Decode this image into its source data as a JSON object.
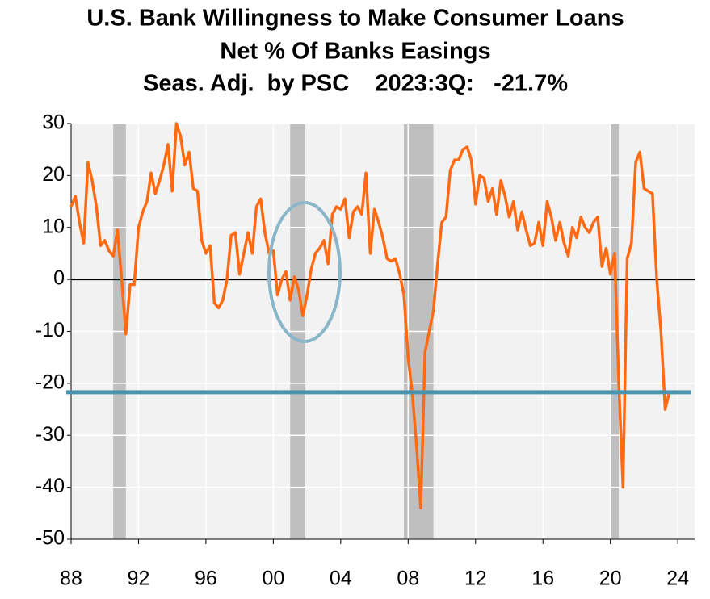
{
  "chart_data": {
    "type": "line",
    "title": "U.S. Bank Willingness to Make Consumer Loans",
    "subtitle": "Net % Of Banks Easings",
    "note": "Seas. Adj.  by PSC    2023:3Q:   -21.7%",
    "color": "#ff6a13",
    "x": [
      1988,
      1988.25,
      1988.5,
      1988.75,
      1989,
      1989.25,
      1989.5,
      1989.75,
      1990,
      1990.25,
      1990.5,
      1990.75,
      1991,
      1991.25,
      1991.5,
      1991.75,
      1992,
      1992.25,
      1992.5,
      1992.75,
      1993,
      1993.25,
      1993.5,
      1993.75,
      1994,
      1994.25,
      1994.5,
      1994.75,
      1995,
      1995.25,
      1995.5,
      1995.75,
      1996,
      1996.25,
      1996.5,
      1996.75,
      1997,
      1997.25,
      1997.5,
      1997.75,
      1998,
      1998.25,
      1998.5,
      1998.75,
      1999,
      1999.25,
      1999.5,
      1999.75,
      2000,
      2000.25,
      2000.5,
      2000.75,
      2001,
      2001.25,
      2001.5,
      2001.75,
      2002,
      2002.25,
      2002.5,
      2002.75,
      2003,
      2003.25,
      2003.5,
      2003.75,
      2004,
      2004.25,
      2004.5,
      2004.75,
      2005,
      2005.25,
      2005.5,
      2005.75,
      2006,
      2006.25,
      2006.5,
      2006.75,
      2007,
      2007.25,
      2007.5,
      2007.75,
      2008,
      2008.25,
      2008.5,
      2008.75,
      2009,
      2009.25,
      2009.5,
      2009.75,
      2010,
      2010.25,
      2010.5,
      2010.75,
      2011,
      2011.25,
      2011.5,
      2011.75,
      2012,
      2012.25,
      2012.5,
      2012.75,
      2013,
      2013.25,
      2013.5,
      2013.75,
      2014,
      2014.25,
      2014.5,
      2014.75,
      2015,
      2015.25,
      2015.5,
      2015.75,
      2016,
      2016.25,
      2016.5,
      2016.75,
      2017,
      2017.25,
      2017.5,
      2017.75,
      2018,
      2018.25,
      2018.5,
      2018.75,
      2019,
      2019.25,
      2019.5,
      2019.75,
      2020,
      2020.25,
      2020.5,
      2020.75,
      2021,
      2021.25,
      2021.5,
      2021.75,
      2022,
      2022.25,
      2022.5,
      2022.75,
      2023,
      2023.25,
      2023.5
    ],
    "values": [
      14,
      16,
      11,
      7,
      22.5,
      19,
      14,
      6.5,
      7.5,
      5.5,
      4.5,
      9.5,
      0,
      -10.5,
      -1,
      -1,
      10,
      13,
      15,
      20.5,
      16.5,
      19,
      22,
      26,
      17,
      30,
      27.5,
      22,
      24.5,
      17.5,
      17,
      7.5,
      5,
      6.5,
      -4.5,
      -5.5,
      -4,
      0,
      8.5,
      9,
      1,
      5,
      9,
      5,
      14,
      15.5,
      9,
      5,
      5.5,
      -3,
      0,
      1.5,
      -4,
      0.5,
      -2,
      -7,
      -3,
      2,
      5,
      6,
      7.5,
      3,
      12.5,
      14,
      13.5,
      15.5,
      8,
      13,
      14,
      12.5,
      20.5,
      5,
      13.5,
      11,
      8,
      4,
      3.5,
      4,
      1,
      -3,
      -15,
      -22,
      -32,
      -44,
      -14,
      -10,
      -6,
      3,
      11,
      12,
      21,
      23,
      23,
      25,
      25.5,
      23,
      14.5,
      20,
      19.5,
      15,
      17.5,
      12.5,
      19,
      16,
      12,
      15,
      9.5,
      13,
      9.5,
      6.5,
      7,
      11,
      6.5,
      15,
      12,
      7.5,
      11,
      7,
      4.5,
      10,
      8,
      12,
      10,
      9,
      11,
      12,
      2.5,
      6,
      1,
      5,
      -20,
      -40,
      4,
      7,
      22.5,
      24.5,
      17.5,
      17,
      16.5,
      0,
      -10,
      -25,
      -21.7
    ],
    "recessions": [
      [
        1990.5,
        1991.25
      ],
      [
        2001,
        2001.9
      ],
      [
        2007.75,
        2009.5
      ],
      [
        2020,
        2020.5
      ]
    ],
    "reference_line": -21.7,
    "xlim": [
      1988,
      2025
    ],
    "xticks": [
      {
        "value": 1988,
        "label": "88"
      },
      {
        "value": 1992,
        "label": "92"
      },
      {
        "value": 1996,
        "label": "96"
      },
      {
        "value": 2000,
        "label": "00"
      },
      {
        "value": 2004,
        "label": "04"
      },
      {
        "value": 2008,
        "label": "08"
      },
      {
        "value": 2012,
        "label": "12"
      },
      {
        "value": 2016,
        "label": "16"
      },
      {
        "value": 2020,
        "label": "20"
      },
      {
        "value": 2024,
        "label": "24"
      }
    ],
    "ylim": [
      -50,
      30
    ],
    "yticks": [
      -50,
      -40,
      -30,
      -20,
      -10,
      0,
      10,
      20,
      30
    ],
    "grid": true
  }
}
